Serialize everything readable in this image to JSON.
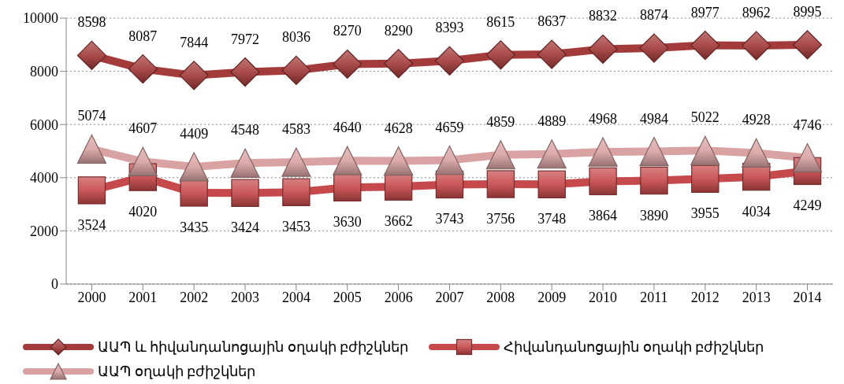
{
  "chart_data": {
    "type": "line",
    "categories": [
      "2000",
      "2001",
      "2002",
      "2003",
      "2004",
      "2005",
      "2006",
      "2007",
      "2008",
      "2009",
      "2010",
      "2011",
      "2012",
      "2013",
      "2014"
    ],
    "series": [
      {
        "name": "ԱԱՊ և հիվանդանոցային օղակի բժիշկներ",
        "color": "#a33b3b",
        "marker": "diamond",
        "values": [
          8598,
          8087,
          7844,
          7972,
          8036,
          8270,
          8290,
          8393,
          8615,
          8637,
          8832,
          8874,
          8977,
          8962,
          8995
        ]
      },
      {
        "name": "Հիվանդանոցային օղակի բժիշկներ",
        "color": "#c64a4c",
        "marker": "square",
        "values": [
          3524,
          4020,
          3435,
          3424,
          3453,
          3630,
          3662,
          3743,
          3756,
          3748,
          3864,
          3890,
          3955,
          4034,
          4249
        ]
      },
      {
        "name": "ԱԱՊ օղակի բժիշկներ",
        "color": "#d9a3a3",
        "marker": "triangle",
        "values": [
          5074,
          4607,
          4409,
          4548,
          4583,
          4640,
          4628,
          4659,
          4859,
          4889,
          4968,
          4984,
          5022,
          4928,
          4746
        ]
      }
    ],
    "ylim": [
      0,
      10000
    ],
    "yticks": [
      0,
      2000,
      4000,
      6000,
      8000,
      10000
    ],
    "grid": "y",
    "legend": "bottom",
    "data_labels": true,
    "line_style": "solid"
  }
}
